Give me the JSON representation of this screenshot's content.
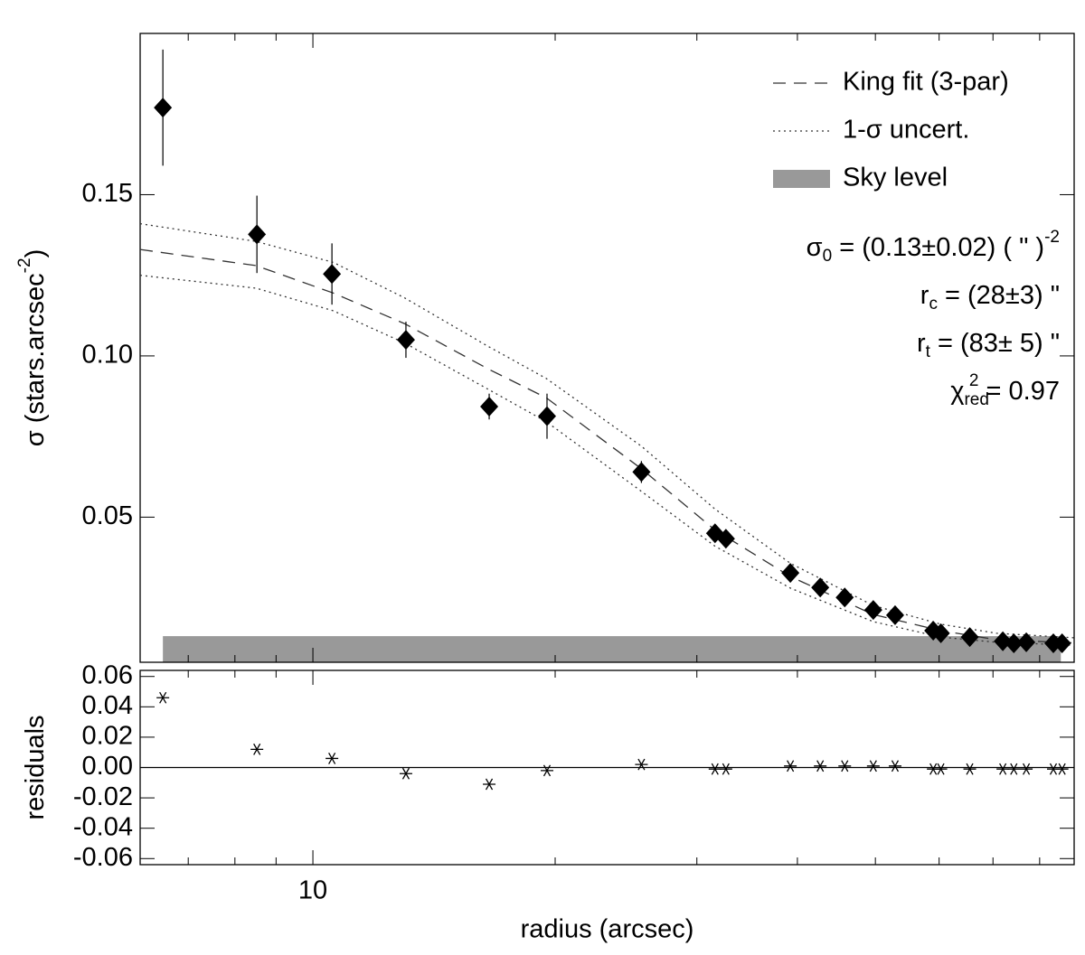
{
  "chart_data": [
    {
      "type": "scatter",
      "ylabel": [
        {
          "text": "σ (stars.arcsec"
        },
        {
          "text": "-2",
          "sup": true
        },
        {
          "text": ")"
        }
      ],
      "xscale": "log",
      "xlim": [
        6.1,
        88.3
      ],
      "ylim": [
        0.005,
        0.2
      ],
      "xticks": [
        10
      ],
      "xminor_ticks": [
        7,
        8,
        9,
        20,
        30,
        40,
        50,
        60,
        70,
        80
      ],
      "yticks": [
        0.05,
        {
          "value": 0.1,
          "label": "0.10"
        },
        0.15
      ],
      "marker": "diamond",
      "color": "#000000",
      "x": [
        6.51,
        8.52,
        10.56,
        13.05,
        16.56,
        19.54,
        25.6,
        31.6,
        32.6,
        39.2,
        42.7,
        45.8,
        49.7,
        52.9,
        59.0,
        60.3,
        65.5,
        72.0,
        74.3,
        77.0,
        83.2,
        85.3
      ],
      "values": [
        0.177,
        0.1377,
        0.1254,
        0.105,
        0.0843,
        0.0813,
        0.064,
        0.045,
        0.0433,
        0.0327,
        0.0282,
        0.0251,
        0.0212,
        0.0196,
        0.0148,
        0.014,
        0.0128,
        0.0115,
        0.0109,
        0.0112,
        0.0109,
        0.0109
      ],
      "errors": [
        0.018,
        0.012,
        0.0095,
        0.0056,
        0.004,
        0.007,
        0.0034,
        0.0015,
        0.0015,
        0.001,
        0.001,
        0.001,
        0.001,
        0.001,
        0.001,
        0.001,
        0.001,
        0.001,
        0.001,
        0.001,
        0.001,
        0.001
      ],
      "lines": [
        {
          "name": "King fit (3-par)",
          "style": "dashed",
          "color": "#333333",
          "x": [
            6.1,
            8.5,
            10.6,
            13.0,
            16.5,
            19.5,
            25.6,
            31.6,
            39.2,
            49.7,
            60.3,
            70.7,
            88.3
          ],
          "values": [
            0.133,
            0.128,
            0.1195,
            0.11,
            0.096,
            0.087,
            0.065,
            0.046,
            0.0316,
            0.0198,
            0.0148,
            0.012,
            0.011
          ]
        },
        {
          "name": "1-σ uncert.",
          "style": "dotted",
          "color": "#333333",
          "x": [
            6.1,
            8.5,
            10.6,
            13.0,
            16.5,
            19.5,
            25.6,
            31.6,
            39.2,
            49.7,
            60.3,
            70.7,
            88.3
          ],
          "values": [
            0.141,
            0.1355,
            0.129,
            0.118,
            0.103,
            0.093,
            0.072,
            0.0525,
            0.0357,
            0.0226,
            0.0168,
            0.014,
            0.0126
          ]
        },
        {
          "style": "dotted",
          "color": "#333333",
          "x": [
            6.1,
            8.5,
            10.6,
            13.0,
            16.5,
            19.5,
            25.6,
            31.6,
            39.2,
            49.7,
            60.3,
            70.7,
            88.3
          ],
          "values": [
            0.125,
            0.121,
            0.114,
            0.104,
            0.0897,
            0.0796,
            0.058,
            0.041,
            0.028,
            0.0176,
            0.0128,
            0.0112,
            0.0103
          ]
        }
      ],
      "band": {
        "name": "Sky level",
        "color": "#999999",
        "x": [
          6.51,
          85.0
        ],
        "top": 0.0131
      },
      "legend": "upper right",
      "annotations": [
        [
          {
            "text": "σ"
          },
          {
            "text": "0",
            "sub": true
          },
          {
            "text": " = (0.13±0.02) ( \" )"
          },
          {
            "text": "-2",
            "sup": true
          }
        ],
        [
          {
            "text": "r"
          },
          {
            "text": "c",
            "sub": true
          },
          {
            "text": " = (28±3) \""
          }
        ],
        [
          {
            "text": "r"
          },
          {
            "text": "t",
            "sub": true
          },
          {
            "text": " = (83± 5) \""
          }
        ],
        [
          {
            "text": "χ"
          },
          {
            "text": "red",
            "sub": true
          },
          {
            "text": "2",
            "sup": true,
            "stack": true
          },
          {
            "text": " = 0.97"
          }
        ]
      ]
    },
    {
      "type": "scatter",
      "ylabel": [
        {
          "text": "residuals"
        }
      ],
      "xlabel": "radius (arcsec)",
      "xscale": "log",
      "xlim": [
        6.1,
        88.3
      ],
      "ylim": [
        -0.064,
        0.064
      ],
      "xticks": [
        10
      ],
      "xminor_ticks": [
        7,
        8,
        9,
        20,
        30,
        40,
        50,
        60,
        70,
        80
      ],
      "yticks": [
        -0.06,
        -0.04,
        -0.02,
        {
          "value": 0,
          "label": "0.00"
        },
        0.02,
        0.04,
        0.06
      ],
      "reference_line": 0,
      "marker": "asterisk",
      "color": "#000000",
      "x": [
        6.51,
        8.52,
        10.56,
        13.05,
        16.56,
        19.54,
        25.6,
        31.6,
        32.6,
        39.2,
        42.7,
        45.8,
        49.7,
        52.9,
        59.0,
        60.3,
        65.5,
        72.0,
        74.3,
        77.0,
        83.2,
        85.3
      ],
      "values": [
        0.046,
        0.012,
        0.006,
        -0.004,
        -0.011,
        -0.002,
        0.002,
        -0.001,
        -0.001,
        0.001,
        0.001,
        0.001,
        0.001,
        0.001,
        -0.001,
        -0.001,
        -0.001,
        -0.001,
        -0.001,
        -0.001,
        -0.001,
        -0.001
      ]
    }
  ]
}
